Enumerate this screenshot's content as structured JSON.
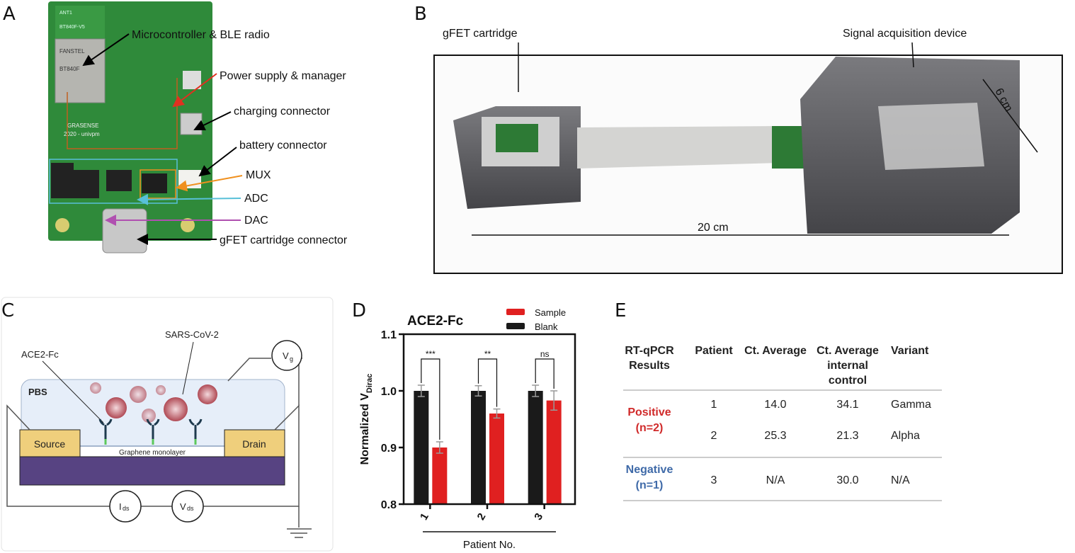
{
  "panels": {
    "a": "A",
    "b": "B",
    "c": "C",
    "d": "D",
    "e": "E"
  },
  "panel_a": {
    "labels": [
      "Microcontroller & BLE radio",
      "Power supply & manager",
      "charging connector",
      "battery connector",
      "MUX",
      "ADC",
      "DAC",
      "gFET cartridge connector"
    ],
    "board_text": [
      "ANT1",
      "BT840F-V5",
      "FANSTEL",
      "BT840F",
      "GRASENSE",
      "2020 - univpm"
    ],
    "arrow_colors": {
      "black": "#000000",
      "power": "#e03020",
      "mux": "#f0901e",
      "adc": "#58c0d8",
      "dac": "#b050b0"
    }
  },
  "panel_b": {
    "labels": {
      "cartridge": "gFET cartridge",
      "device": "Signal acquisition device",
      "length": "20 cm",
      "width": "6 cm"
    }
  },
  "panel_c": {
    "labels": {
      "virus": "SARS-CoV-2",
      "receptor": "ACE2-Fc",
      "buffer": "PBS",
      "source": "Source",
      "drain": "Drain",
      "graphene": "Graphene monolayer",
      "vg": "V",
      "vg_sub": "g",
      "ids": "I",
      "ids_sub": "ds",
      "vds": "V",
      "vds_sub": "ds"
    },
    "colors": {
      "electrode": "#efcf7c",
      "substrate": "#574382",
      "buffer": "#e6eef9",
      "virus": "#b04a55"
    }
  },
  "chart_data": {
    "type": "bar",
    "title": "ACE2-Fc",
    "xlabel": "Patient No.",
    "ylabel": "Normalized V",
    "ylabel_sub": "Dirac",
    "categories": [
      "1",
      "2",
      "3"
    ],
    "ylim": [
      0.8,
      1.1
    ],
    "yticks": [
      "0.8",
      "0.9",
      "1.0",
      "1.1"
    ],
    "legend_position": "top-right",
    "grid": false,
    "series": [
      {
        "name": "Blank",
        "color": "#1a1a1a",
        "values": [
          1.0,
          1.0,
          1.0
        ],
        "errors": [
          0.01,
          0.009,
          0.01
        ]
      },
      {
        "name": "Sample",
        "color": "#e02020",
        "values": [
          0.9,
          0.96,
          0.983
        ],
        "errors": [
          0.01,
          0.008,
          0.017
        ]
      }
    ],
    "significance": [
      "***",
      "**",
      "ns"
    ]
  },
  "panel_e": {
    "headers": [
      [
        "RT-qPCR",
        "Results"
      ],
      [
        "Patient"
      ],
      [
        "Ct. Average"
      ],
      [
        "Ct. Average",
        "internal",
        "control"
      ],
      [
        "Variant"
      ]
    ],
    "groups": [
      {
        "label": "Positive",
        "n": "(n=2)",
        "color": "#d02a2a",
        "rows": [
          [
            "1",
            "14.0",
            "34.1",
            "Gamma"
          ],
          [
            "2",
            "25.3",
            "21.3",
            "Alpha"
          ]
        ]
      },
      {
        "label": "Negative",
        "n": "(n=1)",
        "color": "#3f6aa8",
        "rows": [
          [
            "3",
            "N/A",
            "30.0",
            "N/A"
          ]
        ]
      }
    ]
  }
}
